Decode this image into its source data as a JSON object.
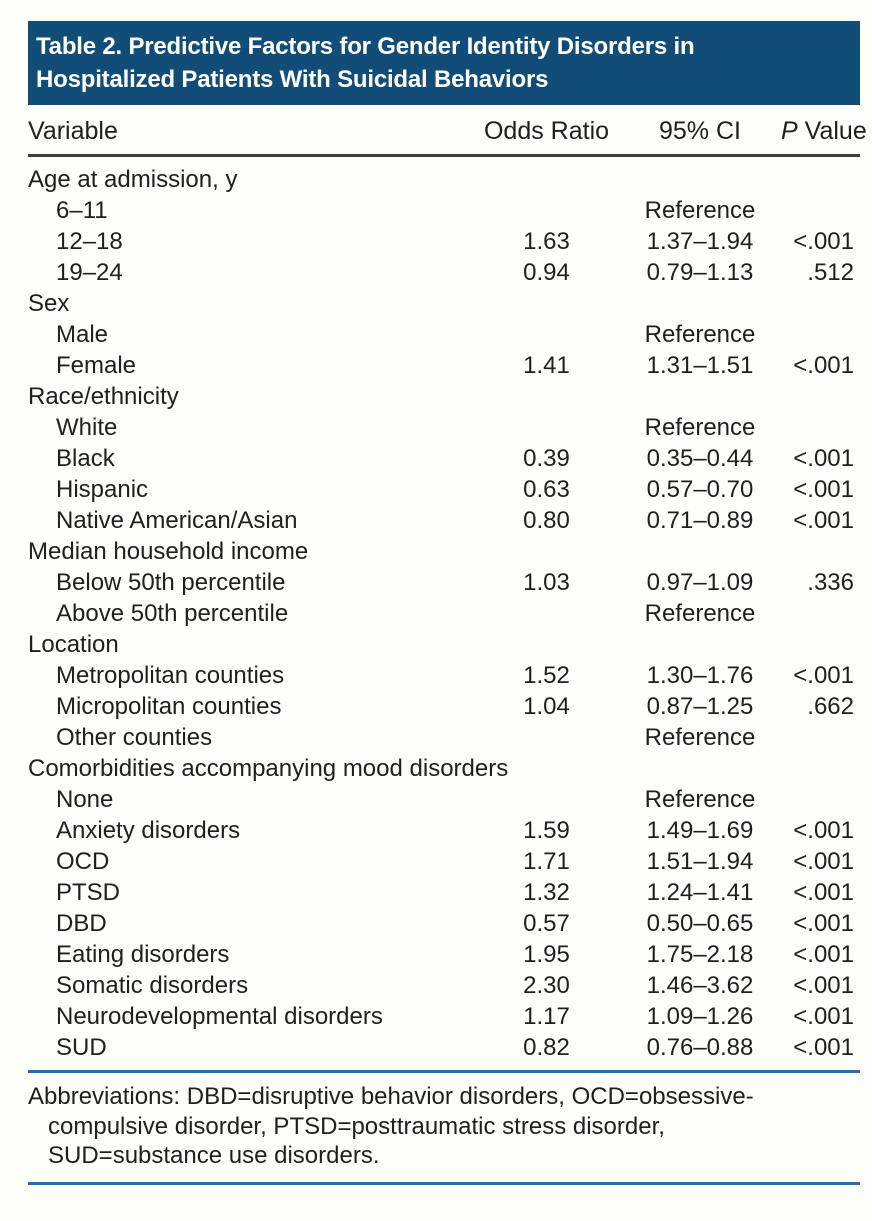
{
  "title": {
    "line1": "Table 2. Predictive Factors for Gender Identity Disorders in",
    "line2": "Hospitalized Patients With Suicidal Behaviors"
  },
  "table": {
    "columns": {
      "variable": "Variable",
      "odds_ratio": "Odds Ratio",
      "ci": "95% CI",
      "p_italic": "P",
      "p_rest": " Value"
    },
    "rows": [
      {
        "type": "group",
        "label": "Age at admission, y"
      },
      {
        "type": "item",
        "label": "6–11",
        "or": "",
        "ci": "Reference",
        "p": ""
      },
      {
        "type": "item",
        "label": "12–18",
        "or": "1.63",
        "ci": "1.37–1.94",
        "p": "<.001"
      },
      {
        "type": "item",
        "label": "19–24",
        "or": "0.94",
        "ci": "0.79–1.13",
        "p": ".512"
      },
      {
        "type": "group",
        "label": "Sex"
      },
      {
        "type": "item",
        "label": "Male",
        "or": "",
        "ci": "Reference",
        "p": ""
      },
      {
        "type": "item",
        "label": "Female",
        "or": "1.41",
        "ci": "1.31–1.51",
        "p": "<.001"
      },
      {
        "type": "group",
        "label": "Race/ethnicity"
      },
      {
        "type": "item",
        "label": "White",
        "or": "",
        "ci": "Reference",
        "p": ""
      },
      {
        "type": "item",
        "label": "Black",
        "or": "0.39",
        "ci": "0.35–0.44",
        "p": "<.001"
      },
      {
        "type": "item",
        "label": "Hispanic",
        "or": "0.63",
        "ci": "0.57–0.70",
        "p": "<.001"
      },
      {
        "type": "item",
        "label": "Native American/Asian",
        "or": "0.80",
        "ci": "0.71–0.89",
        "p": "<.001"
      },
      {
        "type": "group",
        "label": "Median household income"
      },
      {
        "type": "item",
        "label": "Below 50th percentile",
        "or": "1.03",
        "ci": "0.97–1.09",
        "p": ".336"
      },
      {
        "type": "item",
        "label": "Above 50th percentile",
        "or": "",
        "ci": "Reference",
        "p": ""
      },
      {
        "type": "group",
        "label": "Location"
      },
      {
        "type": "item",
        "label": "Metropolitan counties",
        "or": "1.52",
        "ci": "1.30–1.76",
        "p": "<.001"
      },
      {
        "type": "item",
        "label": "Micropolitan counties",
        "or": "1.04",
        "ci": "0.87–1.25",
        "p": ".662"
      },
      {
        "type": "item",
        "label": "Other counties",
        "or": "",
        "ci": "Reference",
        "p": ""
      },
      {
        "type": "group",
        "label": "Comorbidities accompanying mood disorders"
      },
      {
        "type": "item",
        "label": "None",
        "or": "",
        "ci": "Reference",
        "p": ""
      },
      {
        "type": "item",
        "label": "Anxiety disorders",
        "or": "1.59",
        "ci": "1.49–1.69",
        "p": "<.001"
      },
      {
        "type": "item",
        "label": "OCD",
        "or": "1.71",
        "ci": "1.51–1.94",
        "p": "<.001"
      },
      {
        "type": "item",
        "label": "PTSD",
        "or": "1.32",
        "ci": "1.24–1.41",
        "p": "<.001"
      },
      {
        "type": "item",
        "label": "DBD",
        "or": "0.57",
        "ci": "0.50–0.65",
        "p": "<.001"
      },
      {
        "type": "item",
        "label": "Eating disorders",
        "or": "1.95",
        "ci": "1.75–2.18",
        "p": "<.001"
      },
      {
        "type": "item",
        "label": "Somatic disorders",
        "or": "2.30",
        "ci": "1.46–3.62",
        "p": "<.001"
      },
      {
        "type": "item",
        "label": "Neurodevelopmental disorders",
        "or": "1.17",
        "ci": "1.09–1.26",
        "p": "<.001"
      },
      {
        "type": "item",
        "label": "SUD",
        "or": "0.82",
        "ci": "0.76–0.88",
        "p": "<.001"
      }
    ]
  },
  "footnote": {
    "lines": [
      "Abbreviations: DBD=disruptive behavior disorders, OCD=obsessive-",
      "compulsive disorder, PTSD=posttraumatic stress disorder,",
      "SUD=substance use disorders."
    ]
  },
  "colors": {
    "title_band": "#124d77",
    "footnote_rule": "#2d6ba3",
    "header_rule": "#3f3f3f",
    "text": "#1f1f1e"
  }
}
